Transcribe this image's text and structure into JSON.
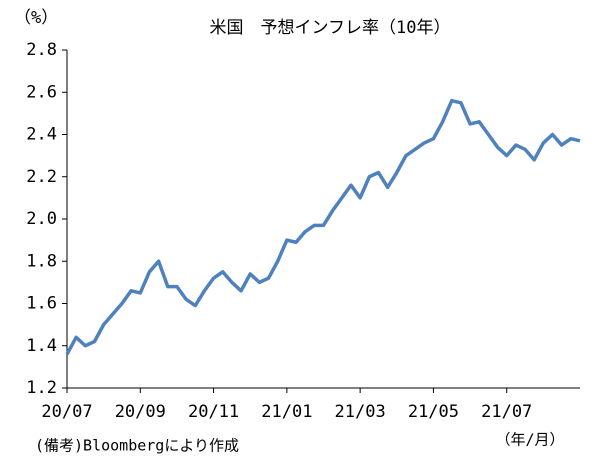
{
  "chart_data": {
    "type": "line",
    "title": "米国　予想インフレ率（10年）",
    "y_label": "（%）",
    "x_label": "（年/月）",
    "source": "(備考)Bloombergにより作成",
    "categories": [
      "20/07",
      null,
      null,
      null,
      null,
      null,
      null,
      null,
      "20/09",
      null,
      null,
      null,
      null,
      null,
      null,
      null,
      "20/11",
      null,
      null,
      null,
      null,
      null,
      null,
      null,
      "21/01",
      null,
      null,
      null,
      null,
      null,
      null,
      null,
      "21/03",
      null,
      null,
      null,
      null,
      null,
      null,
      null,
      "21/05",
      null,
      null,
      null,
      null,
      null,
      null,
      null,
      "21/07",
      null,
      null,
      null,
      null,
      null,
      null,
      null,
      null
    ],
    "series": [
      {
        "name": "予想インフレ率",
        "color": "#4f81bd",
        "values": [
          1.36,
          1.44,
          1.4,
          1.42,
          1.5,
          1.55,
          1.6,
          1.66,
          1.65,
          1.75,
          1.8,
          1.68,
          1.68,
          1.62,
          1.59,
          1.66,
          1.72,
          1.75,
          1.7,
          1.66,
          1.74,
          1.7,
          1.72,
          1.8,
          1.9,
          1.89,
          1.94,
          1.97,
          1.97,
          2.04,
          2.1,
          2.16,
          2.1,
          2.2,
          2.22,
          2.15,
          2.22,
          2.3,
          2.33,
          2.36,
          2.38,
          2.46,
          2.56,
          2.55,
          2.45,
          2.46,
          2.4,
          2.34,
          2.3,
          2.35,
          2.33,
          2.28,
          2.36,
          2.4,
          2.35,
          2.38,
          2.37
        ]
      }
    ],
    "ylim": [
      1.2,
      2.8
    ],
    "yticks": [
      1.2,
      1.4,
      1.6,
      1.8,
      {
        "value": 2,
        "label": "2.0"
      },
      2.2,
      2.4,
      2.6,
      2.8
    ],
    "grid": false
  }
}
